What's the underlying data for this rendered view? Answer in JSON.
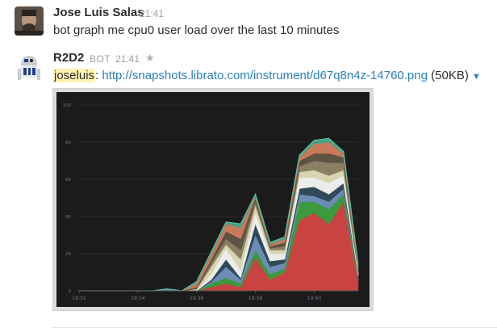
{
  "messages": [
    {
      "author": "Jose Luis Salas",
      "time": "21:41",
      "text": "bot graph me cpu0 user load over the last 10 minutes"
    },
    {
      "author": "R2D2",
      "badge": "BOT",
      "time": "21:41",
      "mention": "joseluis",
      "separator": ": ",
      "link": "http://snapshots.librato.com/instrument/d67q8n4z-14760.png",
      "size": " (50KB)",
      "caret": "▼",
      "star": "★"
    }
  ],
  "chart_data": {
    "type": "area",
    "stacked": true,
    "grid": true,
    "ylim": [
      0,
      100
    ],
    "yticks": [
      "0",
      "20",
      "40",
      "60",
      "80",
      "100"
    ],
    "x": [
      "19:32",
      "19:32.5",
      "19:33",
      "19:33.5",
      "19:34",
      "19:34.5",
      "19:35",
      "19:35.5",
      "19:36",
      "19:36.5",
      "19:37",
      "19:37.5",
      "19:38",
      "19:38.5",
      "19:39",
      "19:39.5",
      "19:40",
      "19:40.5",
      "19:41",
      "19:41.5"
    ],
    "xticks": [
      "19:32",
      "19:34",
      "19:36",
      "19:38",
      "19:40"
    ],
    "series": [
      {
        "color": "#c94343",
        "values": [
          0,
          0,
          0,
          0,
          0,
          0,
          0,
          0,
          0,
          2,
          4,
          2,
          18,
          6,
          10,
          38,
          42,
          36,
          48,
          6
        ]
      },
      {
        "color": "#3c9a3c",
        "values": [
          0,
          0,
          0,
          0,
          0,
          0,
          0,
          0,
          0,
          2,
          3,
          2,
          4,
          3,
          2,
          10,
          6,
          8,
          4,
          1
        ]
      },
      {
        "color": "#6d8cb5",
        "values": [
          0,
          0,
          0,
          0,
          0,
          0,
          1,
          0,
          0,
          1,
          6,
          2,
          8,
          4,
          3,
          4,
          3,
          4,
          3,
          0
        ]
      },
      {
        "color": "#2f4a5a",
        "values": [
          0,
          0,
          0,
          0,
          0,
          0,
          0,
          0,
          0,
          1,
          4,
          1,
          6,
          3,
          2,
          3,
          5,
          4,
          3,
          1
        ]
      },
      {
        "color": "#ececea",
        "values": [
          0,
          0,
          0,
          0,
          0,
          0,
          0,
          0,
          0,
          3,
          6,
          4,
          6,
          4,
          3,
          6,
          5,
          6,
          4,
          1
        ]
      },
      {
        "color": "#d8d4b0",
        "values": [
          0,
          0,
          0,
          0,
          0,
          0,
          0,
          0,
          1,
          4,
          2,
          6,
          4,
          2,
          2,
          3,
          4,
          4,
          3,
          1
        ]
      },
      {
        "color": "#8a7f63",
        "values": [
          0,
          0,
          0,
          0,
          0,
          0,
          0,
          0,
          0,
          2,
          3,
          5,
          2,
          1,
          2,
          3,
          5,
          7,
          4,
          1
        ]
      },
      {
        "color": "#5f5344",
        "values": [
          0,
          0,
          0,
          0,
          0,
          0,
          0,
          0,
          1,
          2,
          4,
          6,
          2,
          1,
          2,
          3,
          4,
          5,
          3,
          1
        ]
      },
      {
        "color": "#c9785a",
        "values": [
          0,
          0,
          0,
          0,
          0,
          0,
          0,
          0,
          2,
          3,
          4,
          6,
          1,
          1,
          2,
          2,
          5,
          6,
          2,
          1
        ]
      },
      {
        "color": "#4aa080",
        "values": [
          0,
          0,
          0,
          0,
          0,
          0,
          0,
          0,
          1,
          1,
          1,
          2,
          1,
          1,
          1,
          1,
          2,
          2,
          1,
          1
        ]
      }
    ]
  }
}
